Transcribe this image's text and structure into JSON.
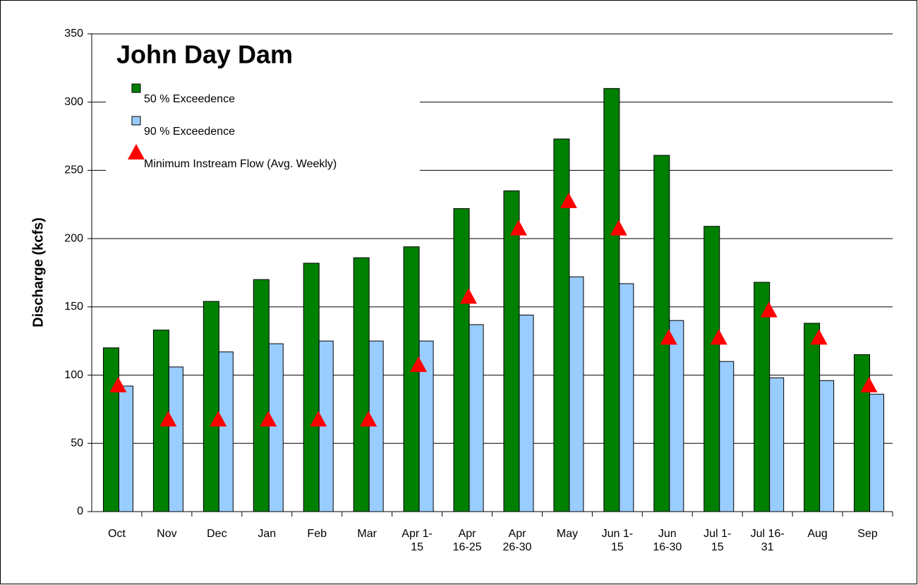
{
  "chart_data": {
    "type": "bar",
    "title": "John Day Dam",
    "y_label": "Discharge (kcfs)",
    "categories": [
      "Oct",
      "Nov",
      "Dec",
      "Jan",
      "Feb",
      "Mar",
      "Apr 1-\n15",
      "Apr\n16-25",
      "Apr\n26-30",
      "May",
      "Jun 1-\n15",
      "Jun\n16-30",
      "Jul 1-\n15",
      "Jul 16-\n31",
      "Aug",
      "Sep"
    ],
    "series": [
      {
        "name": "50 % Exceedence",
        "color": "#008000",
        "marker": "bar",
        "values": [
          120,
          133,
          154,
          170,
          182,
          186,
          194,
          222,
          235,
          273,
          310,
          261,
          209,
          168,
          138,
          115
        ]
      },
      {
        "name": "90 % Exceedence",
        "color": "#99ccff",
        "marker": "bar",
        "values": [
          92,
          106,
          117,
          123,
          125,
          125,
          125,
          137,
          144,
          172,
          167,
          140,
          110,
          98,
          96,
          86
        ]
      },
      {
        "name": "Minimum Instream Flow (Avg. Weekly)",
        "color": "#ff0000",
        "marker": "triangle",
        "values": [
          92,
          67,
          67,
          67,
          67,
          67,
          107,
          157,
          207,
          227,
          207,
          127,
          127,
          147,
          127,
          92
        ]
      }
    ],
    "ylim": [
      0,
      350
    ],
    "yticks": [
      0,
      50,
      100,
      150,
      200,
      250,
      300,
      350
    ],
    "grid": true
  }
}
